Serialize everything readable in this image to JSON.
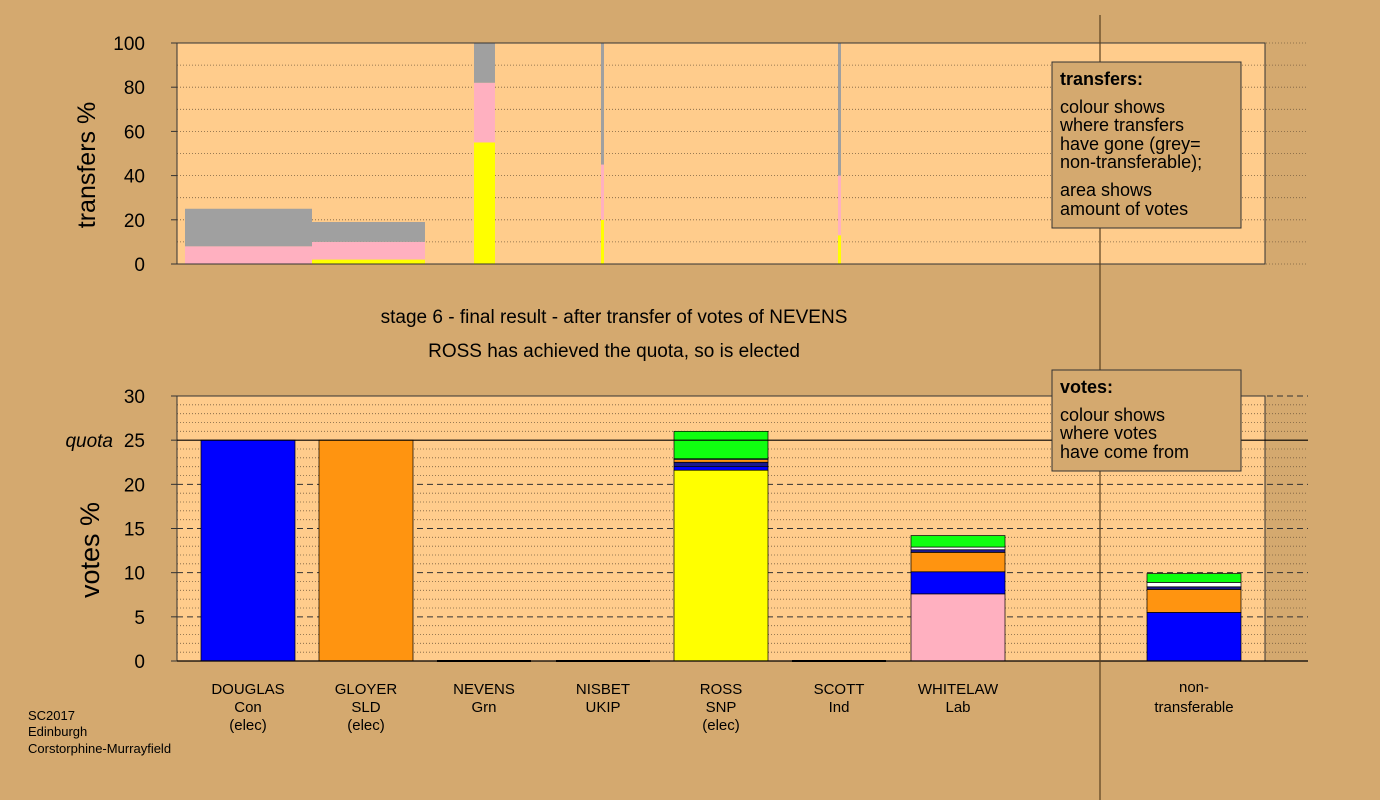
{
  "heading": {
    "stage_line": "stage 6 - final result - after transfer of votes of NEVENS",
    "result_line": "ROSS has achieved the quota, so is elected"
  },
  "footer": {
    "line1": "SC2017",
    "line2": "Edinburgh",
    "line3": "Corstorphine-Murrayfield"
  },
  "legend_transfers": {
    "title": "transfers:",
    "lines": [
      "colour shows",
      "where transfers",
      "have gone (grey=",
      "non-transferable);",
      "area shows",
      "amount of votes"
    ]
  },
  "legend_votes": {
    "title": "votes:",
    "lines": [
      "colour shows",
      "where votes",
      "have come from"
    ]
  },
  "colors": {
    "Con": "#0000ff",
    "SLD": "#ff9410",
    "Grn": "#10ff10",
    "UKIP": "#1a1a8c",
    "SNP": "#ffff00",
    "Ind": "#ffffff",
    "Lab": "#ffb0c0",
    "nontransferable": "#a0a0a0",
    "plot_bg": "#ffcc8c",
    "page_bg": "#d4a96f"
  },
  "chart_data": [
    {
      "type": "bar",
      "role": "transfers",
      "ylabel": "transfers %",
      "ylim": [
        0,
        100
      ],
      "yticks": [
        0,
        20,
        40,
        60,
        80,
        100
      ],
      "note": "bar width = amount of votes transferred at each stage",
      "stages": [
        {
          "width": 2.6,
          "segments": [
            {
              "party": "Lab",
              "value": 8
            },
            {
              "party": "nontransferable",
              "value": 17
            }
          ]
        },
        {
          "width": 2.6,
          "segments": [
            {
              "party": "SNP",
              "value": 2
            },
            {
              "party": "Lab",
              "value": 8
            },
            {
              "party": "nontransferable",
              "value": 9
            }
          ]
        },
        {
          "width": 0.45,
          "segments": [
            {
              "party": "SNP",
              "value": 55
            },
            {
              "party": "Lab",
              "value": 27
            },
            {
              "party": "nontransferable",
              "value": 18
            }
          ]
        },
        {
          "width": 0.05,
          "segments": [
            {
              "party": "SNP",
              "value": 20
            },
            {
              "party": "Lab",
              "value": 25
            },
            {
              "party": "nontransferable",
              "value": 55
            }
          ]
        },
        {
          "width": 0.05,
          "segments": [
            {
              "party": "SNP",
              "value": 13
            },
            {
              "party": "Lab",
              "value": 27
            },
            {
              "party": "nontransferable",
              "value": 60
            }
          ]
        }
      ]
    },
    {
      "type": "bar",
      "role": "votes",
      "ylabel": "votes %",
      "ylim": [
        0,
        30
      ],
      "yticks": [
        0,
        5,
        10,
        15,
        20,
        25,
        30
      ],
      "quota": 25,
      "quota_label": "quota",
      "categories": [
        {
          "name": "DOUGLAS",
          "party": "Con",
          "status": "(elec)",
          "segments": [
            {
              "party": "Con",
              "value": 25
            }
          ]
        },
        {
          "name": "GLOYER",
          "party": "SLD",
          "status": "(elec)",
          "segments": [
            {
              "party": "SLD",
              "value": 25
            }
          ]
        },
        {
          "name": "NEVENS",
          "party": "Grn",
          "status": "",
          "segments": []
        },
        {
          "name": "NISBET",
          "party": "UKIP",
          "status": "",
          "segments": []
        },
        {
          "name": "ROSS",
          "party": "SNP",
          "status": "(elec)",
          "segments": [
            {
              "party": "SNP",
              "value": 21.6
            },
            {
              "party": "Con",
              "value": 0.4
            },
            {
              "party": "UKIP",
              "value": 0.5
            },
            {
              "party": "SLD",
              "value": 0.3
            },
            {
              "party": "Ind",
              "value": 0.1
            },
            {
              "party": "Grn",
              "value": 3.1
            }
          ]
        },
        {
          "name": "SCOTT",
          "party": "Ind",
          "status": "",
          "segments": []
        },
        {
          "name": "WHITELAW",
          "party": "Lab",
          "status": "",
          "segments": [
            {
              "party": "Lab",
              "value": 7.6
            },
            {
              "party": "Con",
              "value": 2.5
            },
            {
              "party": "SLD",
              "value": 2.2
            },
            {
              "party": "UKIP",
              "value": 0.3
            },
            {
              "party": "Ind",
              "value": 0.3
            },
            {
              "party": "Grn",
              "value": 1.3
            }
          ]
        }
      ],
      "nontransferable": {
        "line1": "non-",
        "line2": "transferable",
        "segments": [
          {
            "party": "Con",
            "value": 5.5
          },
          {
            "party": "SLD",
            "value": 2.6
          },
          {
            "party": "UKIP",
            "value": 0.3
          },
          {
            "party": "Ind",
            "value": 0.5
          },
          {
            "party": "Grn",
            "value": 1.0
          }
        ]
      }
    }
  ]
}
